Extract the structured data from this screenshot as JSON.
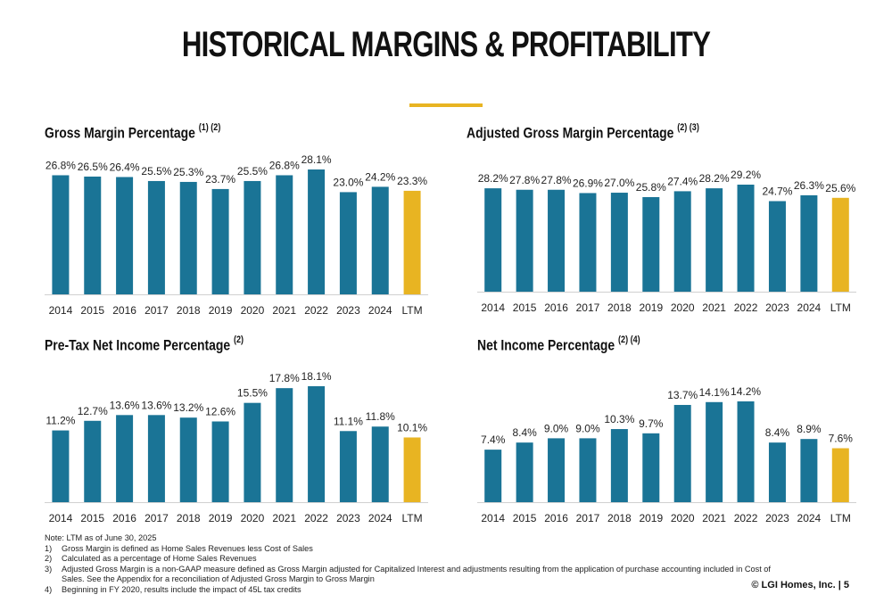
{
  "page": {
    "title": "HISTORICAL MARGINS & PROFITABILITY",
    "copyright": "© LGI Homes, Inc. | 5",
    "colors": {
      "bar": "#1a7496",
      "ltm_bar": "#e8b422",
      "accent_rule": "#e8b422"
    }
  },
  "charts_meta": [
    {
      "title": "Gross Margin Percentage",
      "superscript": "(1) (2)"
    },
    {
      "title": "Adjusted Gross Margin Percentage",
      "superscript": "(2) (3)"
    },
    {
      "title": "Pre-Tax Net Income Percentage",
      "superscript": "(2)"
    },
    {
      "title": "Net Income Percentage",
      "superscript": "(2) (4)"
    }
  ],
  "notes": {
    "header": "Note: LTM as of June 30, 2025",
    "items": [
      {
        "num": "1)",
        "text": "Gross Margin is defined as Home Sales Revenues less Cost of Sales"
      },
      {
        "num": "2)",
        "text": "Calculated as a percentage of Home Sales Revenues"
      },
      {
        "num": "3)",
        "text": "Adjusted Gross Margin is a non-GAAP measure defined as Gross Margin adjusted for Capitalized Interest and adjustments resulting from the application of purchase accounting included in Cost of Sales. See the Appendix for a reconciliation of Adjusted Gross Margin to Gross Margin"
      },
      {
        "num": "4)",
        "text": "Beginning in FY 2020, results include the impact of 45L tax credits"
      }
    ]
  },
  "chart_data": [
    {
      "type": "bar",
      "title": "Gross Margin Percentage (1) (2)",
      "categories": [
        "2014",
        "2015",
        "2016",
        "2017",
        "2018",
        "2019",
        "2020",
        "2021",
        "2022",
        "2023",
        "2024",
        "LTM"
      ],
      "values": [
        26.8,
        26.5,
        26.4,
        25.5,
        25.3,
        23.7,
        25.5,
        26.8,
        28.1,
        23.0,
        24.2,
        23.3
      ],
      "labels": [
        "26.8%",
        "26.5%",
        "26.4%",
        "25.5%",
        "25.3%",
        "23.7%",
        "25.5%",
        "26.8%",
        "28.1%",
        "23.0%",
        "24.2%",
        "23.3%"
      ],
      "highlight": "LTM",
      "grid": false
    },
    {
      "type": "bar",
      "title": "Adjusted Gross Margin Percentage (2) (3)",
      "categories": [
        "2014",
        "2015",
        "2016",
        "2017",
        "2018",
        "2019",
        "2020",
        "2021",
        "2022",
        "2023",
        "2024",
        "LTM"
      ],
      "values": [
        28.2,
        27.8,
        27.8,
        26.9,
        27.0,
        25.8,
        27.4,
        28.2,
        29.2,
        24.7,
        26.3,
        25.6
      ],
      "labels": [
        "28.2%",
        "27.8%",
        "27.8%",
        "26.9%",
        "27.0%",
        "25.8%",
        "27.4%",
        "28.2%",
        "29.2%",
        "24.7%",
        "26.3%",
        "25.6%"
      ],
      "highlight": "LTM",
      "grid": false
    },
    {
      "type": "bar",
      "title": "Pre-Tax Net Income Percentage (2)",
      "categories": [
        "2014",
        "2015",
        "2016",
        "2017",
        "2018",
        "2019",
        "2020",
        "2021",
        "2022",
        "2023",
        "2024",
        "LTM"
      ],
      "values": [
        11.2,
        12.7,
        13.6,
        13.6,
        13.2,
        12.6,
        15.5,
        17.8,
        18.1,
        11.1,
        11.8,
        10.1
      ],
      "labels": [
        "11.2%",
        "12.7%",
        "13.6%",
        "13.6%",
        "13.2%",
        "12.6%",
        "15.5%",
        "17.8%",
        "18.1%",
        "11.1%",
        "11.8%",
        "10.1%"
      ],
      "highlight": "LTM",
      "grid": false
    },
    {
      "type": "bar",
      "title": "Net Income Percentage (2) (4)",
      "categories": [
        "2014",
        "2015",
        "2016",
        "2017",
        "2018",
        "2019",
        "2020",
        "2021",
        "2022",
        "2023",
        "2024",
        "LTM"
      ],
      "values": [
        7.4,
        8.4,
        9.0,
        9.0,
        10.3,
        9.7,
        13.7,
        14.1,
        14.2,
        8.4,
        8.9,
        7.6
      ],
      "labels": [
        "7.4%",
        "8.4%",
        "9.0%",
        "9.0%",
        "10.3%",
        "9.7%",
        "13.7%",
        "14.1%",
        "14.2%",
        "8.4%",
        "8.9%",
        "7.6%"
      ],
      "highlight": "LTM",
      "grid": false
    }
  ]
}
